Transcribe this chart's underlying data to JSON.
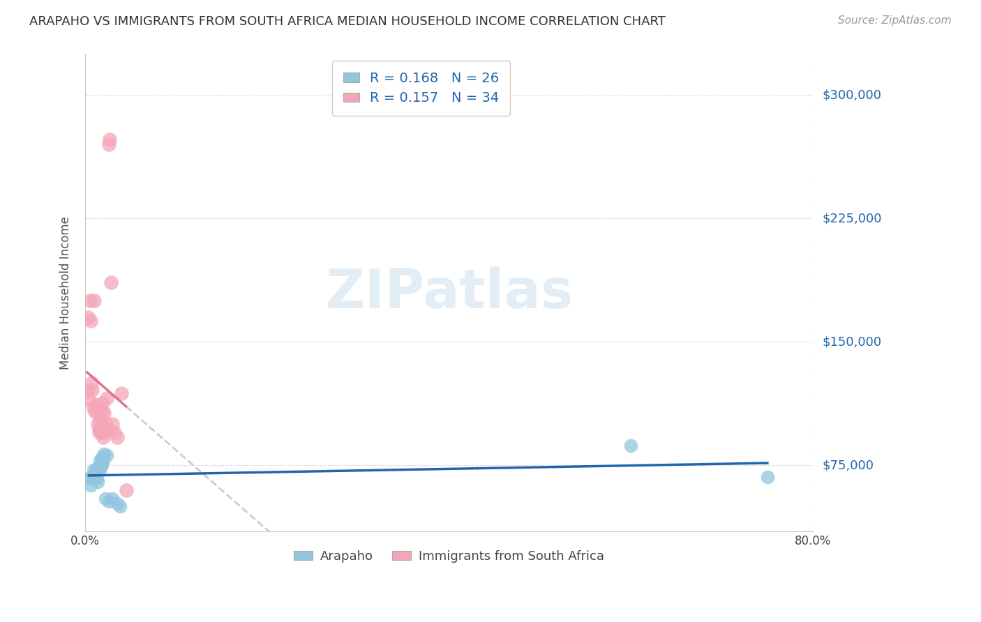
{
  "title": "ARAPAHO VS IMMIGRANTS FROM SOUTH AFRICA MEDIAN HOUSEHOLD INCOME CORRELATION CHART",
  "source": "Source: ZipAtlas.com",
  "ylabel": "Median Household Income",
  "y_ticks": [
    75000,
    150000,
    225000,
    300000
  ],
  "y_tick_labels": [
    "$75,000",
    "$150,000",
    "$225,000",
    "$300,000"
  ],
  "xlim": [
    0.0,
    0.8
  ],
  "ylim": [
    35000,
    325000
  ],
  "legend_label1": "Arapaho",
  "legend_label2": "Immigrants from South Africa",
  "r1": "0.168",
  "n1": "26",
  "r2": "0.157",
  "n2": "34",
  "color_blue": "#92c5de",
  "color_pink": "#f4a6b8",
  "color_line_blue": "#2166ac",
  "color_line_pink": "#e07090",
  "watermark": "ZIPatlas",
  "arapaho_x": [
    0.004,
    0.006,
    0.008,
    0.009,
    0.01,
    0.011,
    0.012,
    0.013,
    0.014,
    0.015,
    0.016,
    0.016,
    0.017,
    0.018,
    0.018,
    0.019,
    0.02,
    0.021,
    0.022,
    0.024,
    0.026,
    0.03,
    0.035,
    0.038,
    0.6,
    0.75
  ],
  "arapaho_y": [
    67000,
    63000,
    68000,
    72000,
    70000,
    68000,
    73000,
    67000,
    65000,
    74000,
    72000,
    78000,
    76000,
    75000,
    80000,
    77000,
    79000,
    82000,
    55000,
    81000,
    53000,
    55000,
    52000,
    50000,
    87000,
    68000
  ],
  "sa_x": [
    0.002,
    0.003,
    0.004,
    0.005,
    0.006,
    0.007,
    0.008,
    0.009,
    0.01,
    0.011,
    0.012,
    0.013,
    0.014,
    0.015,
    0.015,
    0.016,
    0.017,
    0.018,
    0.019,
    0.02,
    0.02,
    0.021,
    0.022,
    0.023,
    0.024,
    0.025,
    0.026,
    0.027,
    0.028,
    0.03,
    0.032,
    0.035,
    0.04,
    0.045
  ],
  "sa_y": [
    120000,
    165000,
    115000,
    175000,
    163000,
    125000,
    121000,
    110000,
    175000,
    108000,
    112000,
    107000,
    100000,
    97000,
    95000,
    102000,
    96000,
    108000,
    113000,
    95000,
    92000,
    107000,
    101000,
    97000,
    116000,
    97000,
    270000,
    273000,
    186000,
    100000,
    95000,
    92000,
    119000,
    60000
  ]
}
